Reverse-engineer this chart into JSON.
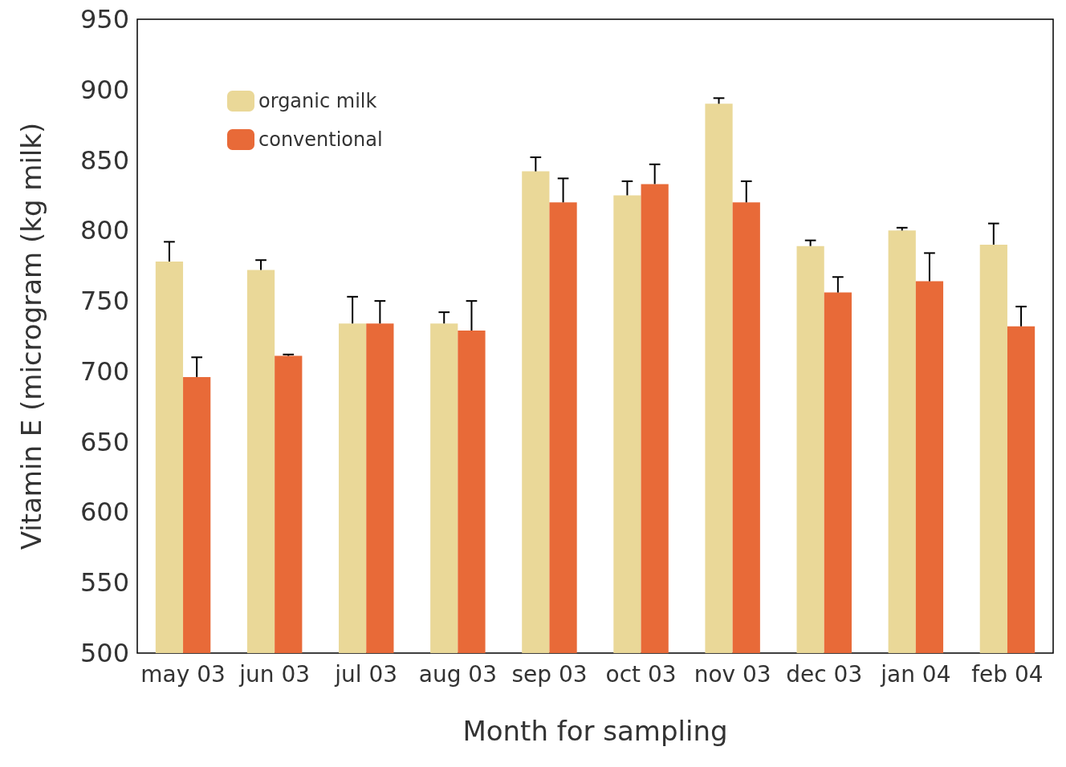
{
  "chart_data": {
    "type": "bar",
    "xlabel": "Month for sampling",
    "ylabel": "Vitamin E (microgram (kg milk)",
    "categories": [
      "may 03",
      "jun 03",
      "jul 03",
      "aug 03",
      "sep 03",
      "oct 03",
      "nov 03",
      "dec 03",
      "jan 04",
      "feb 04"
    ],
    "series": [
      {
        "name": "organic milk",
        "color": "#ead898",
        "values": [
          778,
          772,
          734,
          734,
          842,
          825,
          890,
          789,
          800,
          790
        ],
        "errors": [
          [
            778,
            792
          ],
          [
            772,
            779
          ],
          [
            734,
            753
          ],
          [
            734,
            742
          ],
          [
            842,
            852
          ],
          [
            825,
            835
          ],
          [
            890,
            894
          ],
          [
            789,
            793
          ],
          [
            800,
            802
          ],
          [
            790,
            805
          ]
        ]
      },
      {
        "name": "conventional",
        "color": "#e86a38",
        "values": [
          696,
          711,
          734,
          729,
          820,
          833,
          820,
          756,
          764,
          732
        ],
        "errors": [
          [
            696,
            710
          ],
          [
            711,
            712
          ],
          [
            734,
            750
          ],
          [
            729,
            750
          ],
          [
            820,
            837
          ],
          [
            833,
            847
          ],
          [
            820,
            835
          ],
          [
            756,
            767
          ],
          [
            764,
            784
          ],
          [
            732,
            746
          ]
        ]
      }
    ],
    "ylim": [
      500,
      950
    ],
    "yticks": [
      500,
      550,
      600,
      650,
      700,
      750,
      800,
      850,
      900,
      950
    ],
    "grid": false,
    "legend": "top left"
  }
}
